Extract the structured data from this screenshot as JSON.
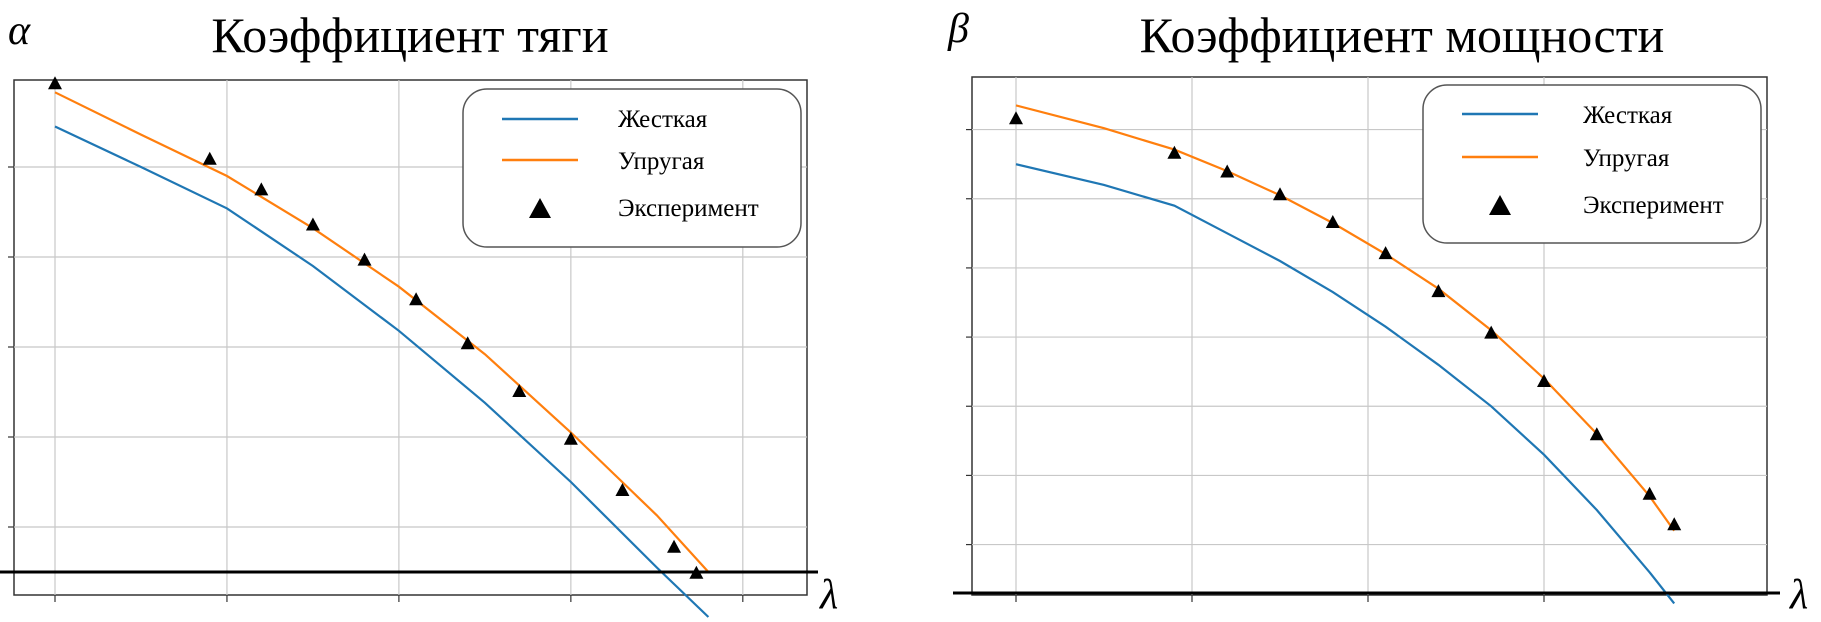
{
  "colors": {
    "rigid": "#1f77b4",
    "elastic": "#ff7f0e",
    "experiment": "#000000",
    "grid": "#c8c8c8"
  },
  "chart_data": [
    {
      "type": "line",
      "title": "Коэффициент тяги",
      "ylabel": "α",
      "xlabel": "λ",
      "xlim": [
        0,
        4.1
      ],
      "ylim": [
        0,
        5.3
      ],
      "grid": true,
      "legend_position": "top-right",
      "legend": [
        "Жесткая",
        "Упругая",
        "Эксперимент"
      ],
      "series": [
        {
          "name": "Жесткая",
          "kind": "line",
          "x": [
            0,
            0.5,
            1.0,
            1.5,
            2.0,
            2.5,
            3.0,
            3.5,
            3.8
          ],
          "y": [
            4.95,
            4.5,
            4.04,
            3.4,
            2.68,
            1.88,
            1.0,
            0.05,
            -0.5
          ]
        },
        {
          "name": "Упругая",
          "kind": "line",
          "x": [
            0,
            0.5,
            1.0,
            1.5,
            2.0,
            2.5,
            3.0,
            3.5,
            3.8
          ],
          "y": [
            5.33,
            4.86,
            4.4,
            3.82,
            3.17,
            2.42,
            1.55,
            0.63,
            0.0
          ]
        },
        {
          "name": "Эксперимент",
          "kind": "scatter",
          "x": [
            0,
            0.9,
            1.2,
            1.5,
            1.8,
            2.1,
            2.4,
            2.7,
            3.0,
            3.3,
            3.6,
            3.73
          ],
          "y": [
            5.42,
            4.58,
            4.24,
            3.85,
            3.46,
            3.02,
            2.53,
            2.0,
            1.47,
            0.9,
            0.27,
            -0.02
          ]
        }
      ]
    },
    {
      "type": "line",
      "title": "Коэффициент мощности",
      "ylabel": "β",
      "xlabel": "λ",
      "xlim": [
        0,
        4.0
      ],
      "ylim": [
        0,
        7.2
      ],
      "grid": true,
      "legend_position": "top-right",
      "legend": [
        "Жесткая",
        "Упругая",
        "Эксперимент"
      ],
      "series": [
        {
          "name": "Жесткая",
          "kind": "line",
          "x": [
            0,
            0.5,
            0.9,
            1.2,
            1.5,
            1.8,
            2.1,
            2.4,
            2.7,
            3.0,
            3.3,
            3.6,
            3.74
          ],
          "y": [
            6.2,
            5.9,
            5.6,
            5.2,
            4.8,
            4.35,
            3.85,
            3.3,
            2.7,
            2.0,
            1.2,
            0.3,
            -0.15
          ]
        },
        {
          "name": "Упругая",
          "kind": "line",
          "x": [
            0,
            0.5,
            0.9,
            1.2,
            1.5,
            1.8,
            2.1,
            2.4,
            2.7,
            3.0,
            3.3,
            3.6,
            3.74
          ],
          "y": [
            7.05,
            6.72,
            6.41,
            6.1,
            5.75,
            5.35,
            4.9,
            4.4,
            3.8,
            3.1,
            2.3,
            1.4,
            0.9
          ]
        },
        {
          "name": "Эксперимент",
          "kind": "scatter",
          "x": [
            0,
            0.9,
            1.2,
            1.5,
            1.8,
            2.1,
            2.4,
            2.7,
            3.0,
            3.3,
            3.6,
            3.74
          ],
          "y": [
            6.85,
            6.35,
            6.08,
            5.75,
            5.35,
            4.9,
            4.35,
            3.75,
            3.05,
            2.28,
            1.42,
            0.98
          ]
        }
      ]
    }
  ]
}
